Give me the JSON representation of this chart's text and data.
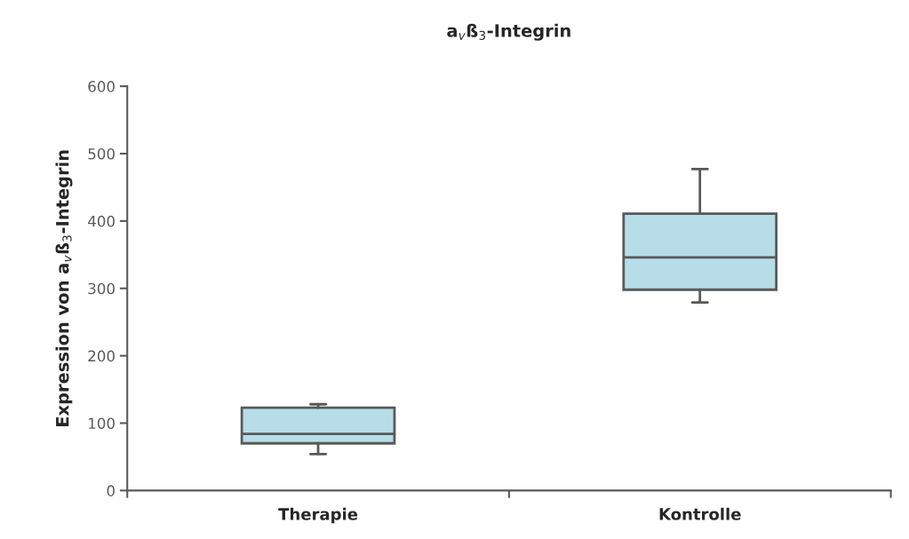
{
  "chart_data": {
    "type": "box",
    "title": "a$_{v}$ß$_{3}$-Integrin",
    "ylabel": "Expression von a$_{v}$ß$_{3}$-Integrin",
    "categories": [
      "Therapie",
      "Kontrolle"
    ],
    "color": "#b7dde8",
    "boxes": [
      {
        "low": 54,
        "q1": 70,
        "median": 84,
        "q3": 123,
        "high": 128
      },
      {
        "low": 279,
        "q1": 298,
        "median": 346,
        "q3": 411,
        "high": 477
      }
    ],
    "ylim": [
      0,
      600
    ],
    "yticks": [
      0,
      100,
      200,
      300,
      400,
      500,
      600
    ],
    "grid": false,
    "legend": false
  }
}
